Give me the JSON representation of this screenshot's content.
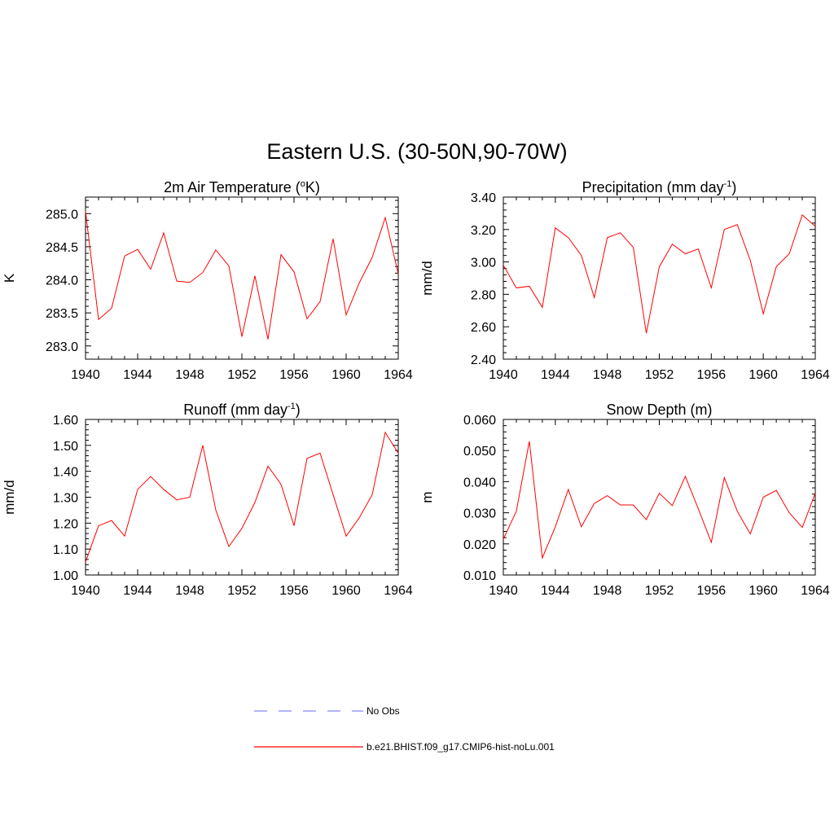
{
  "figure_title": "Eastern U.S. (30-50N,90-70W)",
  "colors": {
    "model_line": "#ff0000",
    "obs_line": "#9999ff",
    "axis": "#000000"
  },
  "legend": {
    "placement": "bottom-center",
    "items": [
      {
        "label": "No Obs",
        "style": "dashed",
        "color": "#9999ff"
      },
      {
        "label": "b.e21.BHIST.f09_g17.CMIP6-hist-noLu.001",
        "style": "solid",
        "color": "#ff0000"
      }
    ]
  },
  "chart_data": [
    {
      "type": "line",
      "title": "2m Air Temperature (",
      "title_super": "o",
      "title_after": "K)",
      "ylabel": "K",
      "xlabel": "",
      "xlim": [
        1940,
        1964
      ],
      "ylim": [
        282.8,
        285.25
      ],
      "xticks": [
        "1940",
        "1944",
        "1948",
        "1952",
        "1956",
        "1960",
        "1964"
      ],
      "yticks": [
        "283.0",
        "283.5",
        "284.0",
        "284.5",
        "285.0"
      ],
      "grid": false,
      "series": [
        {
          "name": "b.e21.BHIST.f09_g17.CMIP6-hist-noLu.001",
          "x": [
            1940,
            1941,
            1942,
            1943,
            1944,
            1945,
            1946,
            1947,
            1948,
            1949,
            1950,
            1951,
            1952,
            1953,
            1954,
            1955,
            1956,
            1957,
            1958,
            1959,
            1960,
            1961,
            1962,
            1963,
            1964
          ],
          "y": [
            285.04,
            283.4,
            283.57,
            284.36,
            284.46,
            284.16,
            284.71,
            283.98,
            283.96,
            284.11,
            284.45,
            284.21,
            283.14,
            284.06,
            283.1,
            284.38,
            284.12,
            283.41,
            283.67,
            284.62,
            283.47,
            283.95,
            284.34,
            284.94,
            284.09
          ]
        }
      ]
    },
    {
      "type": "line",
      "title": "Precipitation (mm day",
      "title_super": "-1",
      "title_after": ")",
      "ylabel": "mm/d",
      "xlabel": "",
      "xlim": [
        1940,
        1964
      ],
      "ylim": [
        2.4,
        3.4
      ],
      "xticks": [
        "1940",
        "1944",
        "1948",
        "1952",
        "1956",
        "1960",
        "1964"
      ],
      "yticks": [
        "2.40",
        "2.60",
        "2.80",
        "3.00",
        "3.20",
        "3.40"
      ],
      "grid": false,
      "series": [
        {
          "name": "b.e21.BHIST.f09_g17.CMIP6-hist-noLu.001",
          "x": [
            1940,
            1941,
            1942,
            1943,
            1944,
            1945,
            1946,
            1947,
            1948,
            1949,
            1950,
            1951,
            1952,
            1953,
            1954,
            1955,
            1956,
            1957,
            1958,
            1959,
            1960,
            1961,
            1962,
            1963,
            1964
          ],
          "y": [
            2.98,
            2.84,
            2.85,
            2.72,
            3.21,
            3.15,
            3.04,
            2.78,
            3.15,
            3.18,
            3.09,
            2.56,
            2.97,
            3.11,
            3.05,
            3.08,
            2.84,
            3.2,
            3.23,
            3.01,
            2.68,
            2.97,
            3.05,
            3.29,
            3.22
          ]
        }
      ]
    },
    {
      "type": "line",
      "title": "Runoff (mm day",
      "title_super": "-1",
      "title_after": ")",
      "ylabel": "mm/d",
      "xlabel": "",
      "xlim": [
        1940,
        1964
      ],
      "ylim": [
        1.0,
        1.6
      ],
      "xticks": [
        "1940",
        "1944",
        "1948",
        "1952",
        "1956",
        "1960",
        "1964"
      ],
      "yticks": [
        "1.00",
        "1.10",
        "1.20",
        "1.30",
        "1.40",
        "1.50",
        "1.60"
      ],
      "grid": false,
      "series": [
        {
          "name": "b.e21.BHIST.f09_g17.CMIP6-hist-noLu.001",
          "x": [
            1940,
            1941,
            1942,
            1943,
            1944,
            1945,
            1946,
            1947,
            1948,
            1949,
            1950,
            1951,
            1952,
            1953,
            1954,
            1955,
            1956,
            1957,
            1958,
            1959,
            1960,
            1961,
            1962,
            1963,
            1964
          ],
          "y": [
            1.05,
            1.19,
            1.21,
            1.15,
            1.33,
            1.38,
            1.33,
            1.29,
            1.3,
            1.5,
            1.25,
            1.11,
            1.18,
            1.28,
            1.42,
            1.35,
            1.19,
            1.45,
            1.47,
            1.31,
            1.15,
            1.22,
            1.31,
            1.55,
            1.47
          ]
        }
      ]
    },
    {
      "type": "line",
      "title": "Snow Depth (m)",
      "title_super": "",
      "title_after": "",
      "ylabel": "m",
      "xlabel": "",
      "xlim": [
        1940,
        1964
      ],
      "ylim": [
        0.01,
        0.06
      ],
      "xticks": [
        "1940",
        "1944",
        "1948",
        "1952",
        "1956",
        "1960",
        "1964"
      ],
      "yticks": [
        "0.010",
        "0.020",
        "0.030",
        "0.040",
        "0.050",
        "0.060"
      ],
      "grid": false,
      "series": [
        {
          "name": "b.e21.BHIST.f09_g17.CMIP6-hist-noLu.001",
          "x": [
            1940,
            1941,
            1942,
            1943,
            1944,
            1945,
            1946,
            1947,
            1948,
            1949,
            1950,
            1951,
            1952,
            1953,
            1954,
            1955,
            1956,
            1957,
            1958,
            1959,
            1960,
            1961,
            1962,
            1963,
            1964
          ],
          "y": [
            0.0215,
            0.0305,
            0.053,
            0.0155,
            0.0255,
            0.0375,
            0.0255,
            0.033,
            0.0355,
            0.0325,
            0.0325,
            0.0278,
            0.0363,
            0.0323,
            0.0417,
            0.0313,
            0.0205,
            0.0413,
            0.0305,
            0.0232,
            0.035,
            0.0372,
            0.03,
            0.0253,
            0.0363
          ]
        }
      ]
    }
  ]
}
